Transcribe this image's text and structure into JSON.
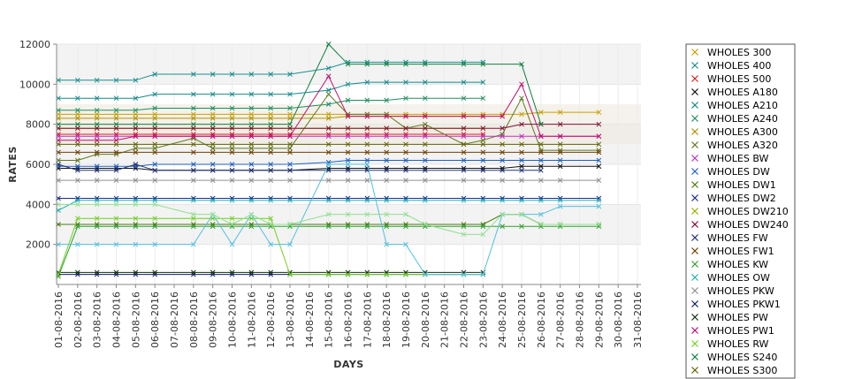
{
  "chart_data": {
    "type": "line",
    "xlabel": "DAYS",
    "ylabel": "RATES",
    "ylim": [
      0,
      12000
    ],
    "yticks": [
      2000,
      4000,
      6000,
      8000,
      10000,
      12000
    ],
    "categories": [
      "01-08-2016",
      "02-08-2016",
      "03-08-2016",
      "04-08-2016",
      "05-08-2016",
      "06-08-2016",
      "07-08-2016",
      "08-08-2016",
      "09-08-2016",
      "10-08-2016",
      "11-08-2016",
      "12-08-2016",
      "13-08-2016",
      "14-08-2016",
      "15-08-2016",
      "16-08-2016",
      "17-08-2016",
      "18-08-2016",
      "19-08-2016",
      "20-08-2016",
      "21-08-2016",
      "22-08-2016",
      "23-08-2016",
      "24-08-2016",
      "25-08-2016",
      "26-08-2016",
      "27-08-2016",
      "28-08-2016",
      "29-08-2016",
      "30-08-2016",
      "31-08-2016"
    ],
    "grid": true,
    "alternating_bands": true,
    "legend_position": "right",
    "series": [
      {
        "name": "WHOLES 300",
        "color": "#c8a000",
        "values": [
          8500,
          8500,
          8500,
          8500,
          8500,
          8500,
          null,
          8500,
          8500,
          8500,
          8500,
          8500,
          8500,
          null,
          8500,
          8500,
          8500,
          8500,
          8500,
          8500,
          null,
          8500,
          8500,
          8500,
          8500,
          8600,
          8600,
          null,
          8600,
          null,
          null
        ]
      },
      {
        "name": "WHOLES 400",
        "color": "#1a8f8f",
        "values": [
          10200,
          10200,
          10200,
          10200,
          10200,
          10500,
          null,
          10500,
          10500,
          10500,
          10500,
          10500,
          10500,
          null,
          10800,
          11100,
          11100,
          11100,
          11100,
          11100,
          null,
          11100,
          11100,
          null,
          null,
          null,
          null,
          null,
          null,
          null,
          null
        ]
      },
      {
        "name": "WHOLES 500",
        "color": "#e02020",
        "values": [
          7500,
          7500,
          7500,
          7500,
          7500,
          7500,
          null,
          7500,
          7500,
          7500,
          7500,
          7500,
          7500,
          null,
          7500,
          7500,
          7500,
          7500,
          7500,
          7500,
          null,
          7500,
          7500,
          null,
          null,
          null,
          null,
          null,
          null,
          null,
          null
        ]
      },
      {
        "name": "WHOLES A180",
        "color": "#101010",
        "values": [
          5800,
          5800,
          5800,
          5800,
          5800,
          5700,
          null,
          5700,
          5700,
          5700,
          5700,
          5700,
          5700,
          null,
          5800,
          5800,
          5800,
          5800,
          5800,
          5800,
          null,
          5800,
          5800,
          5800,
          5900,
          5900,
          5900,
          null,
          5900,
          null,
          null
        ]
      },
      {
        "name": "WHOLES A210",
        "color": "#128a8a",
        "values": [
          9300,
          9300,
          9300,
          9300,
          9300,
          9500,
          null,
          9500,
          9500,
          9500,
          9500,
          9500,
          9500,
          null,
          9700,
          10000,
          10100,
          10100,
          10100,
          10100,
          null,
          10100,
          10100,
          null,
          null,
          null,
          null,
          null,
          null,
          null,
          null
        ]
      },
      {
        "name": "WHOLES A240",
        "color": "#208f60",
        "values": [
          8700,
          8700,
          8700,
          8700,
          8700,
          8800,
          null,
          8800,
          8800,
          8800,
          8800,
          8800,
          8800,
          null,
          9000,
          9200,
          9200,
          9200,
          9300,
          9300,
          null,
          9300,
          9300,
          null,
          null,
          null,
          null,
          null,
          null,
          null,
          null
        ]
      },
      {
        "name": "WHOLES A300",
        "color": "#b09000",
        "values": [
          8300,
          8300,
          8300,
          8300,
          8300,
          8300,
          null,
          8300,
          8300,
          8300,
          8300,
          8300,
          8300,
          null,
          8300,
          8400,
          8400,
          8400,
          8400,
          8400,
          null,
          8400,
          8400,
          null,
          null,
          null,
          null,
          null,
          null,
          null,
          null
        ]
      },
      {
        "name": "WHOLES A320",
        "color": "#607820",
        "values": [
          6200,
          6200,
          6500,
          6500,
          6800,
          6800,
          null,
          7300,
          6800,
          6800,
          6800,
          6800,
          6800,
          null,
          9500,
          8500,
          8500,
          8500,
          7800,
          8000,
          null,
          7000,
          7200,
          7500,
          9300,
          6700,
          6700,
          null,
          6700,
          null,
          null
        ]
      },
      {
        "name": "WHOLES BW",
        "color": "#c030c0",
        "values": [
          7400,
          7400,
          7400,
          7400,
          7400,
          7400,
          null,
          7400,
          7400,
          7400,
          7400,
          7400,
          7400,
          null,
          7400,
          7400,
          7400,
          7400,
          7400,
          7400,
          null,
          7400,
          7400,
          7400,
          7400,
          7400,
          7400,
          null,
          7400,
          null,
          null
        ]
      },
      {
        "name": "WHOLES DW",
        "color": "#2060c0",
        "values": [
          5900,
          5900,
          5900,
          5900,
          5900,
          6000,
          null,
          6000,
          6000,
          6000,
          6000,
          6000,
          6000,
          null,
          6100,
          6200,
          6200,
          6200,
          6200,
          6200,
          null,
          6200,
          6200,
          6200,
          6200,
          6200,
          6200,
          null,
          6200,
          null,
          null
        ]
      },
      {
        "name": "WHOLES DW1",
        "color": "#4a7a10",
        "values": [
          3000,
          3000,
          3000,
          3000,
          3000,
          3000,
          null,
          3000,
          3000,
          3000,
          3000,
          3000,
          3000,
          null,
          3000,
          3000,
          3000,
          3000,
          3000,
          3000,
          null,
          3000,
          3000,
          3500,
          3500,
          3000,
          3000,
          null,
          3000,
          null,
          null
        ]
      },
      {
        "name": "WHOLES DW2",
        "color": "#1a2a90",
        "values": [
          4300,
          4300,
          4300,
          4300,
          4300,
          4300,
          null,
          4300,
          4300,
          4300,
          4300,
          4300,
          4300,
          null,
          4300,
          4300,
          4300,
          4300,
          4300,
          4300,
          null,
          4300,
          4300,
          4300,
          4300,
          4300,
          4300,
          null,
          4300,
          null,
          null
        ]
      },
      {
        "name": "WHOLES DW210",
        "color": "#9ab000",
        "values": [
          7800,
          7800,
          7800,
          7800,
          7800,
          7800,
          null,
          7800,
          7800,
          7800,
          7800,
          7800,
          7800,
          null,
          7800,
          7800,
          7800,
          7800,
          7800,
          7800,
          null,
          7800,
          7800,
          null,
          null,
          null,
          null,
          null,
          null,
          null,
          null
        ]
      },
      {
        "name": "WHOLES DW240",
        "color": "#801030",
        "values": [
          7800,
          7800,
          7800,
          7800,
          7800,
          7800,
          null,
          7800,
          7800,
          7800,
          7800,
          7800,
          7800,
          null,
          7800,
          7800,
          7800,
          7800,
          7800,
          7800,
          null,
          7800,
          7800,
          7800,
          8000,
          8000,
          8000,
          null,
          8000,
          null,
          null
        ]
      },
      {
        "name": "WHOLES FW",
        "color": "#203070",
        "values": [
          6000,
          5700,
          5700,
          5700,
          6000,
          5700,
          null,
          5700,
          5700,
          5700,
          5700,
          5700,
          5700,
          null,
          5700,
          5700,
          5700,
          5700,
          5700,
          5700,
          null,
          5700,
          5700,
          5700,
          5700,
          5700,
          null,
          null,
          null,
          null,
          null
        ]
      },
      {
        "name": "WHOLES FW1",
        "color": "#704000",
        "values": [
          6600,
          6600,
          6600,
          6600,
          6600,
          6600,
          null,
          6600,
          6600,
          6600,
          6600,
          6600,
          6600,
          null,
          6600,
          6600,
          6600,
          6600,
          6600,
          6600,
          null,
          6600,
          6600,
          6600,
          6600,
          6600,
          6600,
          null,
          6600,
          null,
          null
        ]
      },
      {
        "name": "WHOLES KW",
        "color": "#30a030",
        "values": [
          400,
          2900,
          2900,
          2900,
          2900,
          2900,
          null,
          2900,
          2900,
          2900,
          2900,
          2900,
          2900,
          null,
          2900,
          2900,
          2900,
          2900,
          2900,
          2900,
          null,
          2900,
          2900,
          2900,
          2900,
          2900,
          2900,
          null,
          2900,
          null,
          null
        ]
      },
      {
        "name": "WHOLES OW",
        "color": "#20b0b0",
        "values": [
          3700,
          4200,
          4200,
          4200,
          4200,
          4200,
          null,
          4200,
          4200,
          4200,
          4200,
          4200,
          4200,
          null,
          4200,
          4200,
          4200,
          4200,
          4200,
          4200,
          null,
          4200,
          4200,
          4200,
          4200,
          4200,
          4200,
          null,
          4200,
          null,
          null
        ]
      },
      {
        "name": "WHOLES PKW",
        "color": "#909090",
        "values": [
          5200,
          5200,
          5200,
          5200,
          5200,
          5200,
          null,
          5200,
          5200,
          5200,
          5200,
          5200,
          5200,
          null,
          5200,
          5200,
          5200,
          5200,
          5200,
          5200,
          null,
          5200,
          5200,
          5200,
          5200,
          5200,
          5200,
          null,
          5200,
          null,
          null
        ]
      },
      {
        "name": "WHOLES PKW1",
        "color": "#101870",
        "values": [
          500,
          500,
          500,
          500,
          500,
          500,
          null,
          500,
          500,
          500,
          500,
          500,
          500,
          null,
          500,
          500,
          500,
          500,
          500,
          500,
          null,
          500,
          500,
          null,
          null,
          null,
          null,
          null,
          null,
          null,
          null
        ]
      },
      {
        "name": "WHOLES PW",
        "color": "#103010",
        "values": [
          600,
          600,
          600,
          600,
          600,
          600,
          null,
          600,
          600,
          600,
          600,
          600,
          600,
          null,
          600,
          600,
          600,
          600,
          600,
          600,
          null,
          600,
          600,
          null,
          null,
          null,
          null,
          null,
          null,
          null,
          null
        ]
      },
      {
        "name": "WHOLES PW1",
        "color": "#c01070",
        "values": [
          7200,
          7200,
          7200,
          7200,
          7400,
          7400,
          null,
          7400,
          7400,
          7400,
          7400,
          7400,
          7400,
          null,
          10400,
          8400,
          8400,
          8400,
          8400,
          8400,
          null,
          8400,
          8400,
          8400,
          10000,
          7400,
          7400,
          null,
          7400,
          null,
          null
        ]
      },
      {
        "name": "WHOLES RW",
        "color": "#70d020",
        "values": [
          500,
          3300,
          3300,
          3300,
          3300,
          3300,
          null,
          3300,
          3300,
          3300,
          3300,
          3300,
          500,
          null,
          500,
          500,
          500,
          500,
          500,
          500,
          null,
          500,
          500,
          null,
          null,
          null,
          null,
          null,
          null,
          null,
          null
        ]
      },
      {
        "name": "WHOLES S240",
        "color": "#108040",
        "values": [
          8000,
          8000,
          8000,
          8000,
          8000,
          8000,
          null,
          8000,
          8000,
          8000,
          8000,
          8000,
          8000,
          null,
          12000,
          11000,
          11000,
          11000,
          11000,
          11000,
          null,
          11000,
          11000,
          null,
          11000,
          8000,
          null,
          null,
          null,
          null,
          null
        ]
      },
      {
        "name": "WHOLES S300",
        "color": "#606000",
        "values": [
          7000,
          7000,
          7000,
          7000,
          7000,
          7000,
          null,
          7000,
          7000,
          7000,
          7000,
          7000,
          7000,
          null,
          7000,
          7000,
          7000,
          7000,
          7000,
          7000,
          null,
          7000,
          7000,
          7000,
          7000,
          7000,
          7000,
          null,
          7000,
          null,
          null
        ]
      },
      {
        "name": "",
        "color": "#50c0e0",
        "values": [
          2000,
          2000,
          2000,
          2000,
          2000,
          2000,
          null,
          2000,
          3500,
          2000,
          3500,
          2000,
          2000,
          null,
          6000,
          6000,
          6000,
          2000,
          2000,
          500,
          null,
          500,
          500,
          3500,
          3500,
          3500,
          3900,
          null,
          3900,
          null,
          null
        ]
      },
      {
        "name": "",
        "color": "#90e090",
        "values": [
          4000,
          4000,
          4000,
          4000,
          4000,
          4000,
          null,
          3500,
          3500,
          3000,
          3500,
          3000,
          3000,
          null,
          3500,
          3500,
          3500,
          3500,
          3500,
          3000,
          null,
          2500,
          2500,
          3500,
          3500,
          3000,
          3000,
          null,
          3000,
          null,
          null
        ]
      }
    ]
  }
}
